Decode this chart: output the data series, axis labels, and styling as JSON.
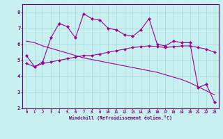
{
  "xlabel": "Windchill (Refroidissement éolien,°C)",
  "background_color": "#c8f0f0",
  "plot_bg_color": "#c8f0f0",
  "line_color": "#990099",
  "spine_color": "#660066",
  "xlim": [
    -0.5,
    23.5
  ],
  "ylim": [
    2,
    8.5
  ],
  "xticks": [
    0,
    1,
    2,
    3,
    4,
    5,
    6,
    7,
    8,
    9,
    10,
    11,
    12,
    13,
    14,
    15,
    16,
    17,
    18,
    19,
    20,
    21,
    22,
    23
  ],
  "yticks": [
    2,
    3,
    4,
    5,
    6,
    7,
    8
  ],
  "grid_color": "#a8d8d8",
  "series1_x": [
    0,
    1,
    2,
    3,
    4,
    5,
    6,
    7,
    8,
    9,
    10,
    11,
    12,
    13,
    14,
    15,
    16,
    17,
    18,
    19,
    20,
    21,
    22,
    23
  ],
  "series1_y": [
    5.3,
    4.6,
    4.9,
    6.4,
    7.3,
    7.1,
    6.4,
    7.9,
    7.6,
    7.5,
    7.0,
    6.9,
    6.6,
    6.5,
    6.9,
    7.6,
    6.0,
    5.9,
    6.2,
    6.1,
    6.1,
    3.3,
    3.5,
    2.4
  ],
  "series2_x": [
    0,
    1,
    2,
    3,
    4,
    5,
    6,
    7,
    8,
    9,
    10,
    11,
    12,
    13,
    14,
    15,
    16,
    17,
    18,
    19,
    20,
    21,
    22,
    23
  ],
  "series2_y": [
    4.8,
    4.6,
    4.8,
    4.9,
    5.0,
    5.1,
    5.2,
    5.3,
    5.3,
    5.4,
    5.5,
    5.6,
    5.7,
    5.8,
    5.85,
    5.9,
    5.85,
    5.8,
    5.85,
    5.9,
    5.9,
    5.8,
    5.7,
    5.5
  ],
  "series3_x": [
    0,
    1,
    2,
    3,
    4,
    5,
    6,
    7,
    8,
    9,
    10,
    11,
    12,
    13,
    14,
    15,
    16,
    17,
    18,
    19,
    20,
    21,
    22,
    23
  ],
  "series3_y": [
    6.2,
    6.1,
    5.9,
    5.75,
    5.6,
    5.45,
    5.3,
    5.15,
    5.05,
    4.95,
    4.85,
    4.75,
    4.65,
    4.55,
    4.45,
    4.35,
    4.25,
    4.1,
    3.95,
    3.8,
    3.6,
    3.35,
    3.1,
    2.85
  ]
}
